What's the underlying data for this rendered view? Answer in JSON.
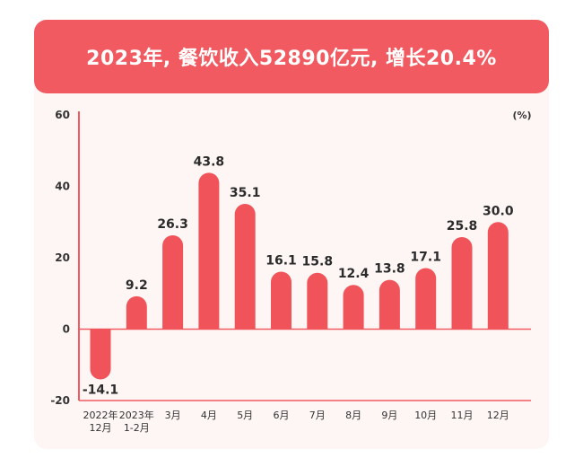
{
  "header": {
    "title": "2023年, 餐饮收入52890亿元, 增长20.4%"
  },
  "chart_data": {
    "type": "bar",
    "title": "2023年, 餐饮收入52890亿元, 增长20.4%",
    "unit_label": "(%)",
    "categories": [
      [
        "2022年",
        "12月"
      ],
      [
        "2023年",
        "1-2月"
      ],
      [
        "3月"
      ],
      [
        "4月"
      ],
      [
        "5月"
      ],
      [
        "6月"
      ],
      [
        "7月"
      ],
      [
        "8月"
      ],
      [
        "9月"
      ],
      [
        "10月"
      ],
      [
        "11月"
      ],
      [
        "12月"
      ]
    ],
    "values": [
      -14.1,
      9.2,
      26.3,
      43.8,
      35.1,
      16.1,
      15.8,
      12.4,
      13.8,
      17.1,
      25.8,
      30.0
    ],
    "value_labels": [
      "-14.1",
      "9.2",
      "26.3",
      "43.8",
      "35.1",
      "16.1",
      "15.8",
      "12.4",
      "13.8",
      "17.1",
      "25.8",
      "30.0"
    ],
    "ylim": [
      -20,
      60
    ],
    "yticks": [
      60,
      40,
      20,
      0,
      -20
    ],
    "grid": false,
    "colors": {
      "bar": "#f0545a",
      "axis": "#f05a60",
      "banner": "#f05a60",
      "background": "#fdf6f4"
    }
  }
}
